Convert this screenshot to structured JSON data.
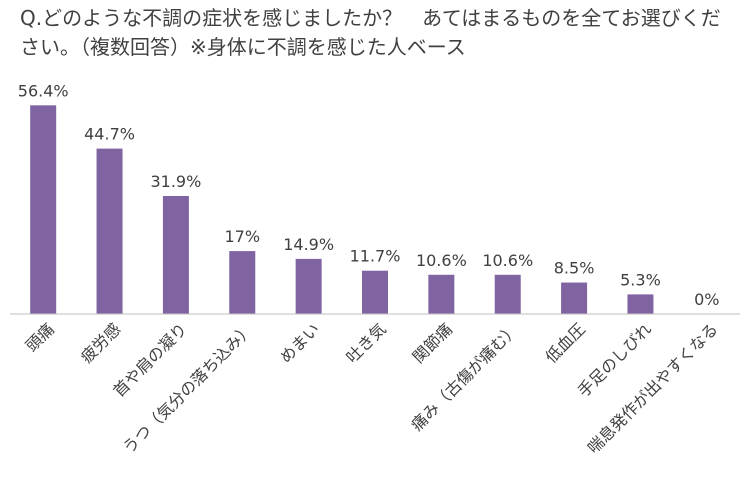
{
  "title": "Q.どのような不調の症状を感じましたか？　あてはまるものを全てお選びください。（複数回答）※身体に不調を感じた人ベース",
  "colors": {
    "bar": "#8064a2",
    "axis": "#bfbfbf",
    "text": "#404040"
  },
  "chart_data": {
    "type": "bar",
    "title": "Q.どのような不調の症状を感じましたか？　あてはまるものを全てお選びください。（複数回答）※身体に不調を感じた人ベース",
    "categories": [
      "頭痛",
      "疲労感",
      "首や肩の凝り",
      "うつ（気分の落ち込み）",
      "めまい",
      "吐き気",
      "関節痛",
      "痛み（古傷が痛む）",
      "低血圧",
      "手足のしびれ",
      "喘息発作が出やすくなる"
    ],
    "values": [
      56.4,
      44.7,
      31.9,
      17,
      14.9,
      11.7,
      10.6,
      10.6,
      8.5,
      5.3,
      0
    ],
    "data_labels": [
      "56.4%",
      "44.7%",
      "31.9%",
      "17%",
      "14.9%",
      "11.7%",
      "10.6%",
      "10.6%",
      "8.5%",
      "5.3%",
      "0%"
    ],
    "unit": "%",
    "ylim": [
      0,
      60
    ],
    "grid": false,
    "legend": "none"
  }
}
